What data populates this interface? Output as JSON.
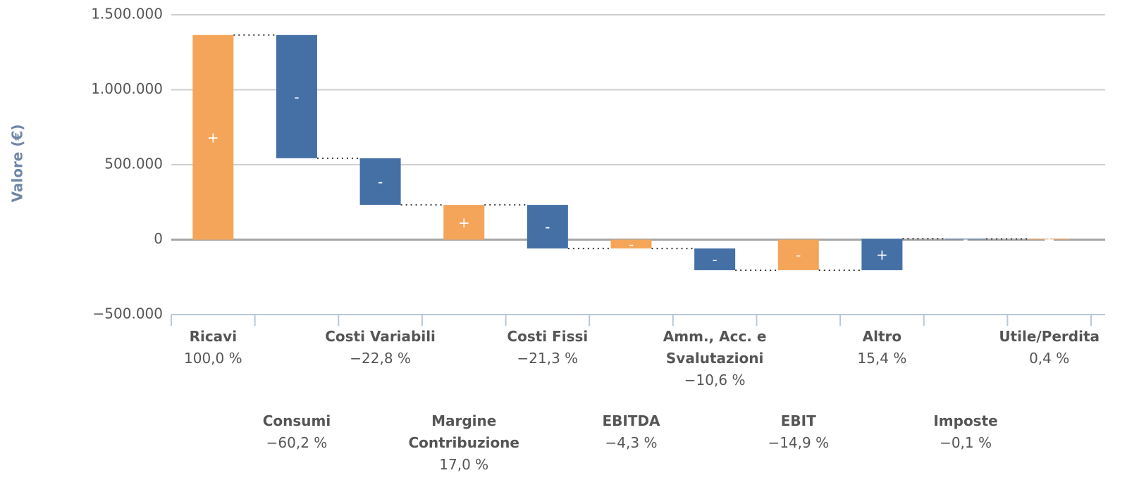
{
  "chart_data": {
    "type": "waterfall",
    "y_label": "Valore (€)",
    "categories": [
      "Ricavi",
      "Consumi",
      "Costi Variabili",
      "Margine Contribuzione",
      "Costi Fissi",
      "EBITDA",
      "Amm., Acc. e Svalutazioni",
      "EBIT",
      "Altro",
      "Imposte",
      "Utile/Perdita"
    ],
    "percent_labels": [
      "100,0 %",
      "−60,2 %",
      "−22,8 %",
      "17,0 %",
      "−21,3 %",
      "−4,3 %",
      "−10,6 %",
      "−14,9 %",
      "15,4 %",
      "−0,1 %",
      "0,4 %"
    ],
    "values": [
      1365000,
      -822000,
      -311000,
      232000,
      -291000,
      -59000,
      -145000,
      -204000,
      210000,
      -1400,
      4600
    ],
    "is_total": [
      true,
      false,
      false,
      true,
      false,
      true,
      false,
      true,
      false,
      false,
      true
    ],
    "signs": [
      "+",
      "-",
      "-",
      "+",
      "-",
      "-",
      "-",
      "-",
      "+",
      "-",
      "+"
    ],
    "colors": [
      "#f5a55a",
      "#4470a6",
      "#4470a6",
      "#f5a55a",
      "#4470a6",
      "#f5a55a",
      "#4470a6",
      "#f5a55a",
      "#4470a6",
      "#4470a6",
      "#f5a55a"
    ],
    "ylim": [
      -500000,
      1500000
    ],
    "yticks": [
      {
        "value": -500000,
        "label": "−500.000"
      },
      {
        "value": 0,
        "label": "0"
      },
      {
        "value": 500000,
        "label": "500.000"
      },
      {
        "value": 1000000,
        "label": "1.000.000"
      },
      {
        "value": 1500000,
        "label": "1.500.000"
      }
    ],
    "grid": true
  }
}
